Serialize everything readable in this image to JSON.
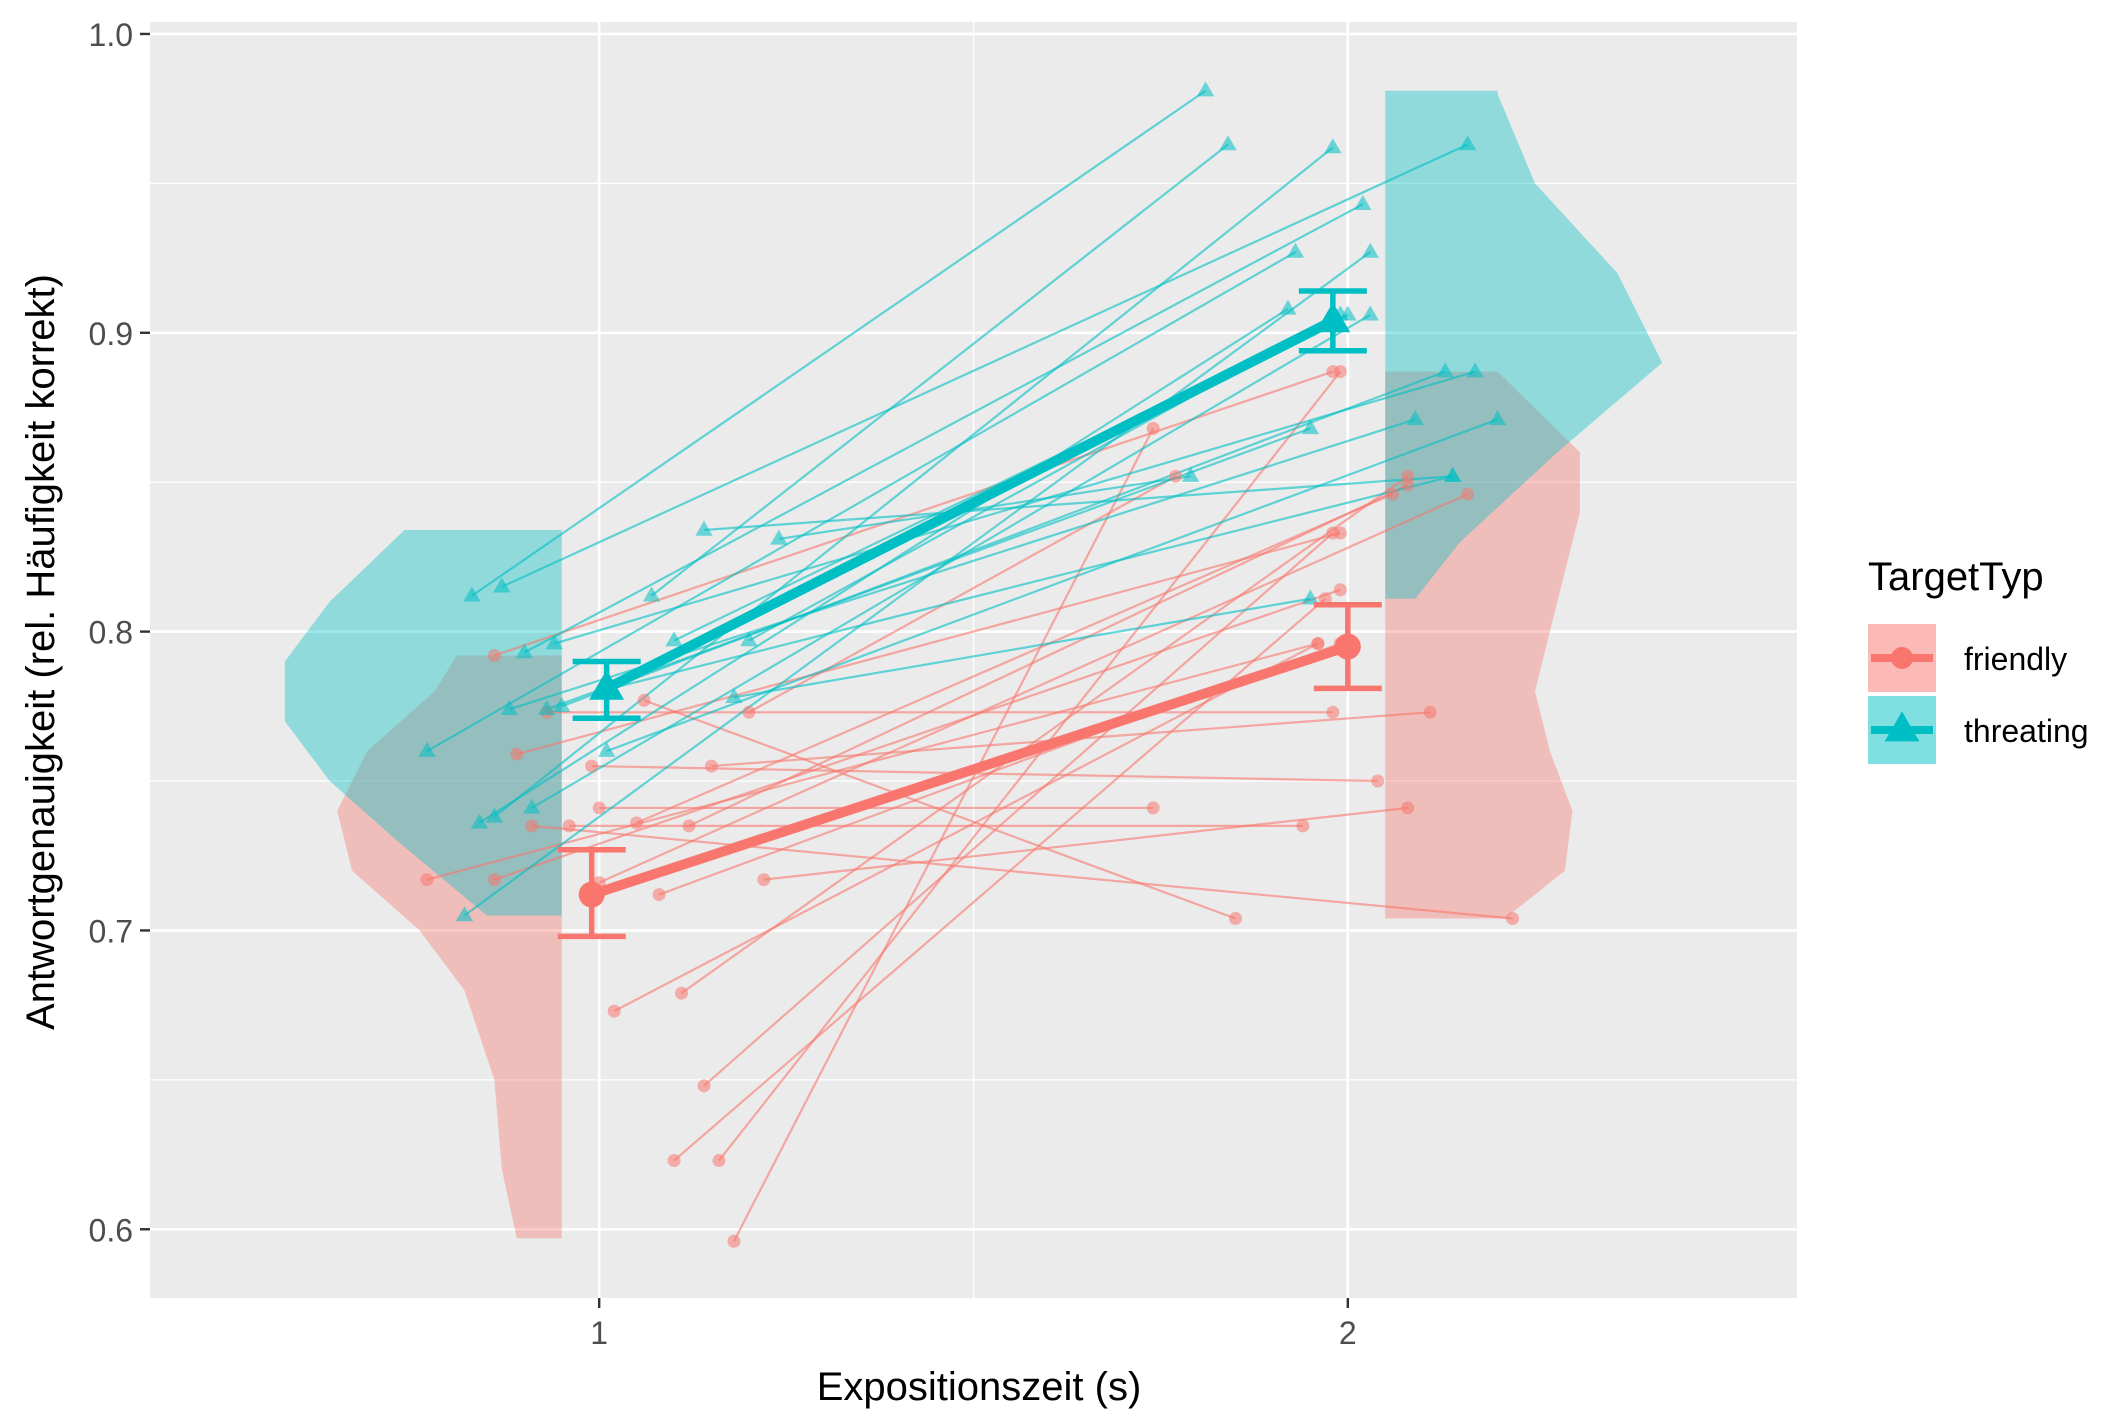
{
  "chart_data": {
    "type": "scatter",
    "xlabel": "Expositionszeit (s)",
    "ylabel": "Antwortgenauigkeit (rel. Häufigkeit korrekt)",
    "categories": [
      "1",
      "2"
    ],
    "ylim": [
      0.577,
      1.0
    ],
    "y_ticks": [
      0.6,
      0.7,
      0.8,
      0.9,
      1.0
    ],
    "y_tick_labels": [
      "0.6",
      "0.7",
      "0.8",
      "0.9",
      "1.0"
    ],
    "x_tick_labels": [
      "1",
      "2"
    ],
    "grid": true,
    "legend": {
      "title": "TargetTyp",
      "position": "right",
      "entries": [
        "friendly",
        "threating"
      ]
    },
    "colors": {
      "friendly": "#F8766D",
      "threating": "#00BFC4",
      "panel": "#EBEBEB",
      "grid": "#FFFFFF"
    },
    "series": [
      {
        "name": "friendly",
        "marker": "circle",
        "means": [
          0.712,
          0.795
        ],
        "error_low": [
          0.698,
          0.781
        ],
        "error_high": [
          0.727,
          0.809
        ],
        "participants": [
          {
            "x1": 0.77,
            "y1": 0.717,
            "x2": 1.96,
            "y2": 0.796
          },
          {
            "x1": 0.86,
            "y1": 0.717,
            "x2": 1.99,
            "y2": 0.814
          },
          {
            "x1": 0.86,
            "y1": 0.792,
            "x2": 1.98,
            "y2": 0.887
          },
          {
            "x1": 0.89,
            "y1": 0.759,
            "x2": 1.99,
            "y2": 0.833
          },
          {
            "x1": 0.96,
            "y1": 0.735,
            "x2": 1.94,
            "y2": 0.735
          },
          {
            "x1": 0.99,
            "y1": 0.755,
            "x2": 2.04,
            "y2": 0.75
          },
          {
            "x1": 1.02,
            "y1": 0.673,
            "x2": 1.96,
            "y2": 0.796
          },
          {
            "x1": 1.06,
            "y1": 0.777,
            "x2": 1.85,
            "y2": 0.704
          },
          {
            "x1": 1.08,
            "y1": 0.712,
            "x2": 1.99,
            "y2": 0.796
          },
          {
            "x1": 1.11,
            "y1": 0.679,
            "x2": 2.08,
            "y2": 0.852
          },
          {
            "x1": 1.1,
            "y1": 0.623,
            "x2": 1.97,
            "y2": 0.811
          },
          {
            "x1": 1.14,
            "y1": 0.648,
            "x2": 1.98,
            "y2": 0.833
          },
          {
            "x1": 1.15,
            "y1": 0.755,
            "x2": 2.11,
            "y2": 0.773
          },
          {
            "x1": 1.16,
            "y1": 0.623,
            "x2": 1.99,
            "y2": 0.887
          },
          {
            "x1": 1.18,
            "y1": 0.596,
            "x2": 1.74,
            "y2": 0.868
          },
          {
            "x1": 1.2,
            "y1": 0.773,
            "x2": 1.77,
            "y2": 0.852
          },
          {
            "x1": 1.22,
            "y1": 0.717,
            "x2": 2.08,
            "y2": 0.741
          },
          {
            "x1": 0.91,
            "y1": 0.735,
            "x2": 2.22,
            "y2": 0.704
          },
          {
            "x1": 0.93,
            "y1": 0.773,
            "x2": 1.98,
            "y2": 0.773
          },
          {
            "x1": 1.0,
            "y1": 0.741,
            "x2": 1.74,
            "y2": 0.741
          },
          {
            "x1": 1.05,
            "y1": 0.736,
            "x2": 2.06,
            "y2": 0.846
          },
          {
            "x1": 1.0,
            "y1": 0.716,
            "x2": 2.16,
            "y2": 0.846
          },
          {
            "x1": 1.12,
            "y1": 0.735,
            "x2": 2.08,
            "y2": 0.849
          }
        ]
      },
      {
        "name": "threating",
        "marker": "triangle",
        "means": [
          0.781,
          0.904
        ],
        "error_low": [
          0.771,
          0.894
        ],
        "error_high": [
          0.79,
          0.914
        ],
        "participants": [
          {
            "x1": 0.77,
            "y1": 0.76,
            "x2": 1.93,
            "y2": 0.927
          },
          {
            "x1": 0.82,
            "y1": 0.705,
            "x2": 2.03,
            "y2": 0.927
          },
          {
            "x1": 0.83,
            "y1": 0.812,
            "x2": 1.81,
            "y2": 0.981
          },
          {
            "x1": 0.84,
            "y1": 0.736,
            "x2": 1.92,
            "y2": 0.908
          },
          {
            "x1": 0.86,
            "y1": 0.738,
            "x2": 1.98,
            "y2": 0.962
          },
          {
            "x1": 0.87,
            "y1": 0.815,
            "x2": 2.16,
            "y2": 0.963
          },
          {
            "x1": 0.88,
            "y1": 0.774,
            "x2": 2.09,
            "y2": 0.871
          },
          {
            "x1": 0.9,
            "y1": 0.793,
            "x2": 2.02,
            "y2": 0.943
          },
          {
            "x1": 0.91,
            "y1": 0.741,
            "x2": 2.03,
            "y2": 0.906
          },
          {
            "x1": 0.93,
            "y1": 0.774,
            "x2": 1.95,
            "y2": 0.868
          },
          {
            "x1": 0.94,
            "y1": 0.796,
            "x2": 2.17,
            "y2": 0.887
          },
          {
            "x1": 0.95,
            "y1": 0.775,
            "x2": 2.13,
            "y2": 0.887
          },
          {
            "x1": 1.01,
            "y1": 0.76,
            "x2": 2.2,
            "y2": 0.871
          },
          {
            "x1": 1.07,
            "y1": 0.812,
            "x2": 1.84,
            "y2": 0.963
          },
          {
            "x1": 1.1,
            "y1": 0.797,
            "x2": 2.0,
            "y2": 0.906
          },
          {
            "x1": 1.14,
            "y1": 0.834,
            "x2": 2.14,
            "y2": 0.852
          },
          {
            "x1": 1.2,
            "y1": 0.797,
            "x2": 1.99,
            "y2": 0.906
          },
          {
            "x1": 1.24,
            "y1": 0.831,
            "x2": 1.79,
            "y2": 0.852
          },
          {
            "x1": 1.18,
            "y1": 0.778,
            "x2": 1.95,
            "y2": 0.811
          },
          {
            "x1": 1.0,
            "y1": 0.78,
            "x2": 2.14,
            "y2": 0.852
          }
        ]
      }
    ],
    "densities": {
      "friendly_x1": {
        "ylim": [
          0.597,
          0.792
        ],
        "y": [
          0.597,
          0.62,
          0.65,
          0.68,
          0.7,
          0.72,
          0.74,
          0.76,
          0.78,
          0.792
        ],
        "d": [
          0.06,
          0.08,
          0.09,
          0.13,
          0.19,
          0.28,
          0.3,
          0.26,
          0.17,
          0.14
        ]
      },
      "threating_x1": {
        "ylim": [
          0.705,
          0.834
        ],
        "y": [
          0.705,
          0.73,
          0.75,
          0.77,
          0.79,
          0.81,
          0.834
        ],
        "d": [
          0.1,
          0.22,
          0.31,
          0.37,
          0.37,
          0.31,
          0.21
        ]
      },
      "friendly_x2": {
        "ylim": [
          0.704,
          0.887
        ],
        "y": [
          0.704,
          0.72,
          0.74,
          0.76,
          0.78,
          0.8,
          0.82,
          0.84,
          0.86,
          0.887
        ],
        "d": [
          0.16,
          0.24,
          0.25,
          0.22,
          0.2,
          0.22,
          0.24,
          0.26,
          0.26,
          0.15
        ]
      },
      "threating_x2": {
        "ylim": [
          0.811,
          0.981
        ],
        "y": [
          0.811,
          0.83,
          0.86,
          0.89,
          0.92,
          0.95,
          0.98,
          0.981
        ],
        "d": [
          0.04,
          0.1,
          0.23,
          0.37,
          0.31,
          0.2,
          0.15,
          0.15
        ]
      }
    }
  }
}
